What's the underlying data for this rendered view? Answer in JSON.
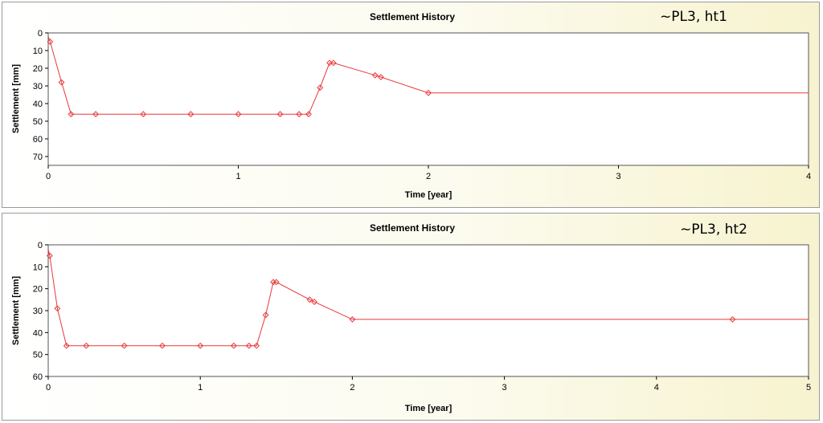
{
  "chart_data": [
    {
      "type": "line",
      "title": "Settlement History",
      "annotation": "~PL3, ht1",
      "xlabel": "Time [year]",
      "ylabel": "Settlement [mm]",
      "xlim": [
        0,
        4
      ],
      "ylim": [
        0,
        75
      ],
      "y_inverted": true,
      "xticks": [
        0,
        1,
        2,
        3,
        4
      ],
      "yticks": [
        0,
        10,
        20,
        30,
        40,
        50,
        60,
        70
      ],
      "grid": false,
      "line_color": "#e8383c",
      "series": [
        {
          "x": [
            0,
            0.01,
            0.07,
            0.12,
            0.25,
            0.5,
            0.75,
            1.0,
            1.22,
            1.32,
            1.37,
            1.43,
            1.48,
            1.5,
            1.72,
            1.75,
            2.0,
            4.0
          ],
          "y": [
            2,
            5,
            28,
            46,
            46,
            46,
            46,
            46,
            46,
            46,
            46,
            31,
            17,
            17,
            24,
            25,
            34,
            34
          ],
          "markers": [
            false,
            true,
            true,
            true,
            true,
            true,
            true,
            true,
            true,
            true,
            true,
            true,
            true,
            true,
            true,
            true,
            true,
            false
          ]
        }
      ]
    },
    {
      "type": "line",
      "title": "Settlement History",
      "annotation": "~PL3, ht2",
      "xlabel": "Time [year]",
      "ylabel": "Settlement [mm]",
      "xlim": [
        0,
        5
      ],
      "ylim": [
        0,
        60
      ],
      "y_inverted": true,
      "xticks": [
        0,
        1,
        2,
        3,
        4,
        5
      ],
      "yticks": [
        0,
        10,
        20,
        30,
        40,
        50,
        60
      ],
      "grid": false,
      "line_color": "#e8383c",
      "series": [
        {
          "x": [
            0,
            0.01,
            0.06,
            0.12,
            0.25,
            0.5,
            0.75,
            1.0,
            1.22,
            1.32,
            1.37,
            1.43,
            1.48,
            1.5,
            1.72,
            1.75,
            2.0,
            4.5,
            5.0
          ],
          "y": [
            2,
            5,
            29,
            46,
            46,
            46,
            46,
            46,
            46,
            46,
            46,
            32,
            17,
            17,
            25,
            26,
            34,
            34,
            34
          ],
          "markers": [
            false,
            true,
            true,
            true,
            true,
            true,
            true,
            true,
            true,
            true,
            true,
            true,
            true,
            true,
            true,
            true,
            true,
            true,
            false
          ]
        }
      ]
    }
  ]
}
